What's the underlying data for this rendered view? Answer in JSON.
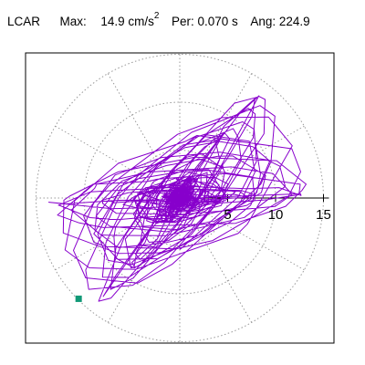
{
  "header": {
    "station": "LCAR",
    "max_label": "Max:",
    "max_value": "14.9",
    "max_unit": "cm/s",
    "max_unit_exp": "2",
    "period_label": "Per:",
    "period_value": "0.070 s",
    "angle_label": "Ang:",
    "angle_value": "224.9"
  },
  "chart_data": {
    "type": "scatter",
    "title": "",
    "xlabel": "",
    "ylabel": "",
    "grid": true,
    "radial_ticks": [
      "5",
      "10",
      "15"
    ],
    "radial_tick_values": [
      5,
      10,
      15
    ],
    "r_max": 15,
    "grid_color": "#999999",
    "trace_color": "#8800cc",
    "peak_marker_color": "#119977",
    "peak": {
      "amplitude": 14.9,
      "angle_deg": 224.9
    },
    "trace_orientation_deg": 28,
    "max_angle_deg": 224.9,
    "max_amplitude": 14.9
  }
}
